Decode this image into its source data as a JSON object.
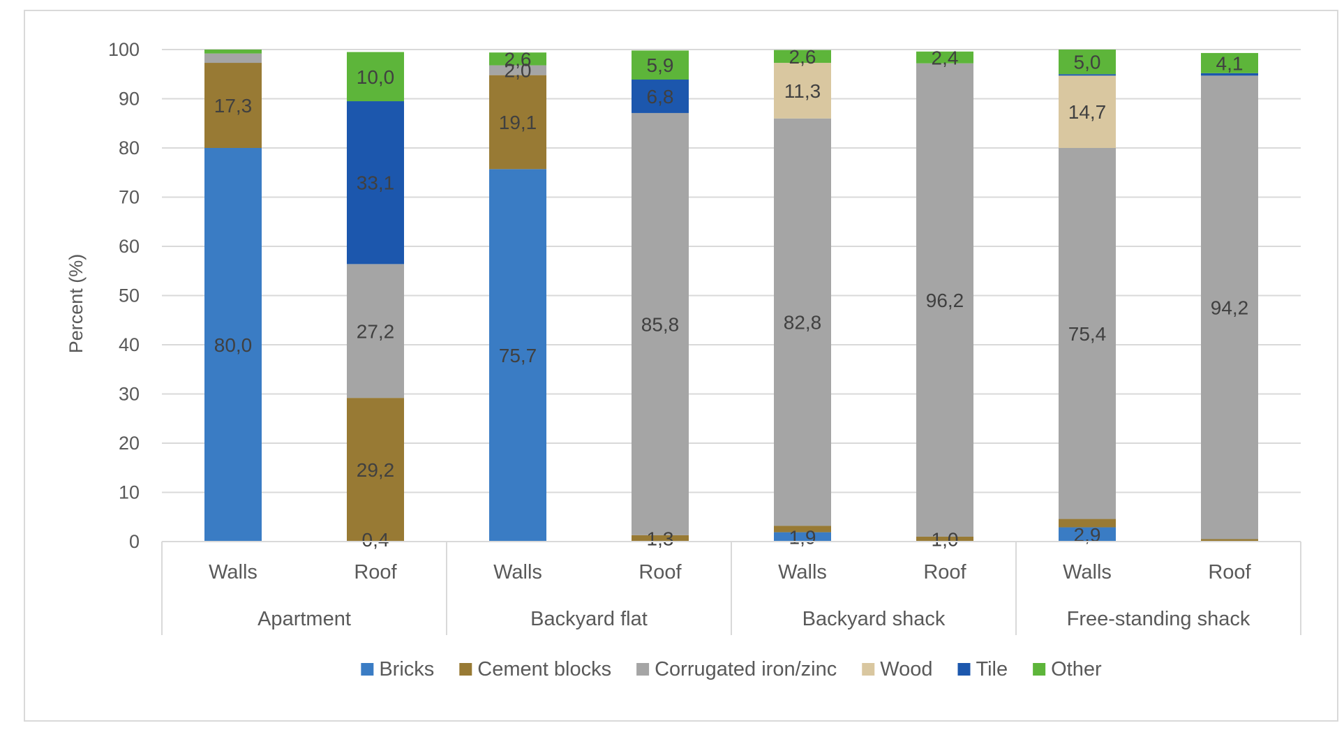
{
  "chart_data": {
    "type": "bar",
    "stacked": true,
    "title": "",
    "xlabel": "",
    "ylabel": "Percent (%)",
    "ylim": [
      0,
      100
    ],
    "yticks": [
      0,
      10,
      20,
      30,
      40,
      50,
      60,
      70,
      80,
      90,
      100
    ],
    "grid": true,
    "legend_position": "bottom",
    "groups": [
      "Apartment",
      "Backyard flat",
      "Backyard shack",
      "Free-standing shack"
    ],
    "categories": [
      "Walls",
      "Roof",
      "Walls",
      "Roof",
      "Walls",
      "Roof",
      "Walls",
      "Roof"
    ],
    "series": [
      {
        "name": "Bricks",
        "color": "#3a7cc4",
        "values": [
          80.0,
          0.0,
          75.7,
          0.0,
          1.9,
          0.0,
          2.9,
          0.0
        ],
        "labels": [
          "80,0",
          "",
          "75,7",
          "",
          "1,9",
          "",
          "2,9",
          ""
        ]
      },
      {
        "name": "Cement blocks",
        "color": "#987a34",
        "values": [
          17.3,
          29.2,
          19.1,
          1.3,
          1.3,
          1.0,
          1.7,
          0.5
        ],
        "labels": [
          "17,3",
          "29,2",
          "19,1",
          "1,3",
          "",
          "1,0",
          "",
          ""
        ]
      },
      {
        "name": "Corrugated iron/zinc",
        "color": "#a5a5a5",
        "values": [
          1.9,
          27.2,
          2.0,
          85.8,
          82.8,
          96.2,
          75.4,
          94.2
        ],
        "labels": [
          "",
          "27,2",
          "2,0",
          "85,8",
          "82,8",
          "96,2",
          "75,4",
          "94,2"
        ]
      },
      {
        "name": "Wood",
        "color": "#d9c7a0",
        "values": [
          0.0,
          0.0,
          0.0,
          0.0,
          11.3,
          0.0,
          14.7,
          0.0
        ],
        "labels": [
          "",
          "",
          "",
          "",
          "11,3",
          "",
          "14,7",
          ""
        ]
      },
      {
        "name": "Tile",
        "color": "#1c57ad",
        "values": [
          0.0,
          33.1,
          0.0,
          6.8,
          0.0,
          0.0,
          0.3,
          0.5
        ],
        "labels": [
          "",
          "33,1",
          "",
          "6,8",
          "",
          "",
          "",
          ""
        ]
      },
      {
        "name": "Other",
        "color": "#5db53a",
        "values": [
          0.8,
          10.0,
          2.6,
          5.9,
          2.6,
          2.4,
          5.0,
          4.1
        ],
        "labels": [
          "",
          "10,0",
          "2,6",
          "5,9",
          "2,6",
          "2,4",
          "5,0",
          "4,1"
        ]
      }
    ],
    "extra_labels": [
      {
        "bar": 1,
        "text": "0,4",
        "at": 0.4
      }
    ]
  }
}
